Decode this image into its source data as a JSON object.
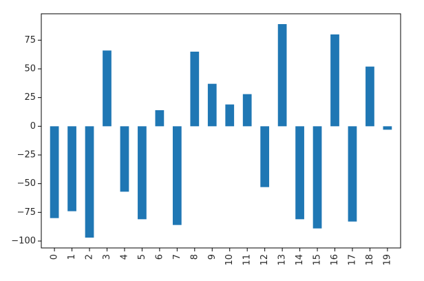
{
  "chart_data": {
    "type": "bar",
    "title": "",
    "xlabel": "",
    "ylabel": "",
    "categories": [
      "0",
      "1",
      "2",
      "3",
      "4",
      "5",
      "6",
      "7",
      "8",
      "9",
      "10",
      "11",
      "12",
      "13",
      "14",
      "15",
      "16",
      "17",
      "18",
      "19"
    ],
    "values": [
      -80,
      -74,
      -97,
      66,
      -57,
      -81,
      14,
      -86,
      65,
      37,
      19,
      28,
      -53,
      89,
      -81,
      -89,
      80,
      -83,
      52,
      -3
    ],
    "ylim": [
      -106,
      98
    ],
    "yticks": [
      75,
      50,
      25,
      0,
      -25,
      -50,
      -75,
      -100
    ],
    "ytick_labels": [
      "75",
      "50",
      "25",
      "0",
      "−25",
      "−50",
      "−75",
      "−100"
    ],
    "grid": false,
    "legend": "none",
    "colors": {
      "bar": "#1f77b4",
      "axis": "#000000",
      "text": "#262626"
    }
  }
}
